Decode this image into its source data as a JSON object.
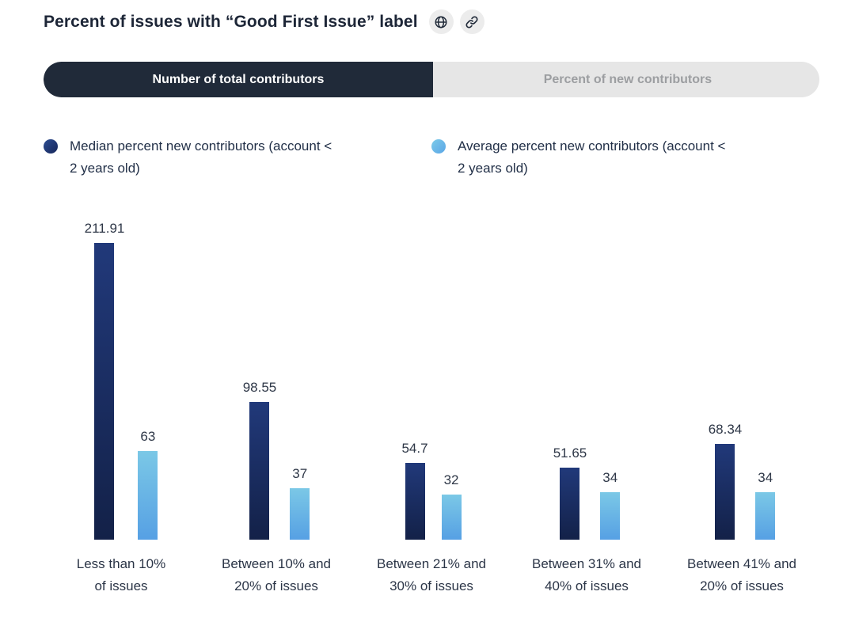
{
  "header": {
    "title": "Percent of issues with “Good First Issue” label",
    "icons": [
      {
        "name": "globe-icon"
      },
      {
        "name": "link-icon"
      }
    ]
  },
  "tabs": [
    {
      "label": "Number of total contributors",
      "active": true
    },
    {
      "label": "Percent of new contributors",
      "active": false
    }
  ],
  "legend": [
    {
      "label": "Median percent new contributors (account <\n2 years old)",
      "color": "#1b2a5e"
    },
    {
      "label": "Average percent new contributors (account <\n2 years old)",
      "color": "#6fc0e8"
    }
  ],
  "colors": {
    "bar_median_top": "#21397a",
    "bar_median_bottom": "#132148",
    "bar_average_top": "#7bc8e6",
    "bar_average_bottom": "#56a0e4",
    "tab_active_bg": "#202a39",
    "tab_inactive_bg": "#e6e6e6",
    "tab_inactive_text": "#9c9ea1",
    "title_text": "#1d2637",
    "icon_circle_bg": "#ececec"
  },
  "chart_data": {
    "type": "bar",
    "title": "Percent of issues with “Good First Issue” label",
    "categories": [
      "Less than 10%\nof issues",
      "Between 10% and\n20% of issues",
      "Between 21% and\n30% of issues",
      "Between 31% and\n40% of issues",
      "Between 41% and\n20% of issues"
    ],
    "series": [
      {
        "name": "Median percent new contributors (account < 2 years old)",
        "values": [
          211.91,
          98.55,
          54.7,
          51.65,
          68.34
        ]
      },
      {
        "name": "Average percent new contributors (account < 2 years old)",
        "values": [
          63,
          37,
          32,
          34,
          34
        ]
      }
    ],
    "xlabel": "",
    "ylabel": "",
    "ylim": [
      0,
      220
    ],
    "grid": false,
    "value_labels": true,
    "legend_position": "top"
  }
}
